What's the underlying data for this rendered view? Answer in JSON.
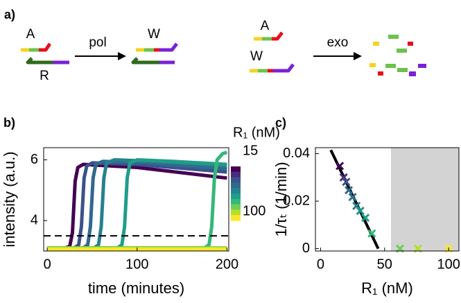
{
  "diagram": {
    "panel_label": "a)",
    "left": {
      "strand_top": "A",
      "strand_bottom": "R",
      "arrow": "pol",
      "product": "W"
    },
    "right": {
      "strand_top": "A",
      "strand_bottom": "W",
      "arrow": "exo"
    }
  },
  "chart_data": [
    {
      "type": "line",
      "panel_label": "b)",
      "x_label": "time (minutes)",
      "y_label": "intensity (a.u.)",
      "xlim": [
        -4,
        202
      ],
      "xticks": [
        0,
        100,
        200
      ],
      "ylim": [
        3,
        6.4
      ],
      "yticks": [
        4,
        6
      ],
      "threshold": 3.5,
      "series": [
        {
          "color": "#440154",
          "x": [
            0,
            20,
            25,
            28,
            31,
            34,
            40,
            100,
            200
          ],
          "values": [
            3.1,
            3.1,
            3.15,
            3.6,
            5.3,
            5.75,
            5.85,
            5.75,
            5.4
          ]
        },
        {
          "color": "#3b528b",
          "x": [
            0,
            30,
            35,
            38,
            41,
            44,
            50,
            100,
            200
          ],
          "values": [
            3.1,
            3.1,
            3.2,
            3.8,
            5.4,
            5.8,
            5.9,
            5.85,
            5.6
          ]
        },
        {
          "color": "#31688e",
          "x": [
            0,
            40,
            45,
            48,
            51,
            54,
            62,
            110,
            200
          ],
          "values": [
            3.1,
            3.1,
            3.2,
            3.8,
            5.4,
            5.85,
            5.95,
            5.9,
            5.7
          ]
        },
        {
          "color": "#26828e",
          "x": [
            0,
            52,
            57,
            60,
            63,
            66,
            75,
            120,
            200
          ],
          "values": [
            3.1,
            3.1,
            3.2,
            3.8,
            5.4,
            5.9,
            6.0,
            5.95,
            5.8
          ]
        },
        {
          "color": "#1f9e89",
          "x": [
            0,
            78,
            83,
            86,
            89,
            92,
            100,
            140,
            200
          ],
          "values": [
            3.1,
            3.1,
            3.2,
            3.8,
            5.4,
            5.9,
            6.0,
            5.95,
            5.85
          ]
        },
        {
          "color": "#35b779",
          "x": [
            0,
            175,
            180,
            183,
            186,
            189,
            195,
            200
          ],
          "values": [
            3.1,
            3.1,
            3.2,
            3.8,
            5.4,
            6.0,
            6.2,
            6.25
          ]
        },
        {
          "color": "#6ece58",
          "x": [
            0,
            200
          ],
          "values": [
            3.1,
            3.1
          ]
        },
        {
          "color": "#b5de2b",
          "x": [
            0,
            200
          ],
          "values": [
            3.08,
            3.08
          ]
        },
        {
          "color": "#fde725",
          "x": [
            0,
            200
          ],
          "values": [
            3.05,
            3.05
          ]
        }
      ],
      "colorbar": {
        "title": "R₁ (nM)",
        "ticks": [
          15,
          100
        ],
        "colors": [
          "#440154",
          "#472d7b",
          "#3b528b",
          "#31688e",
          "#26828e",
          "#1f9e89",
          "#35b779",
          "#6ece58",
          "#b5de2b",
          "#fde725"
        ]
      }
    },
    {
      "type": "scatter",
      "panel_label": "c)",
      "x_label": "R₁ (nM)",
      "y_label": "1/τₜ (1/min)",
      "xlim": [
        -4,
        108
      ],
      "xticks": [
        0,
        50,
        100
      ],
      "ylim": [
        -0.001,
        0.0425
      ],
      "yticks": [
        0,
        0.02,
        0.04
      ],
      "shaded_xrange": [
        55,
        108
      ],
      "shade_color": "#d3d3d3",
      "fit": {
        "color": "#000000",
        "x": [
          8,
          45
        ],
        "values": [
          0.0415,
          0
        ]
      },
      "series": [
        {
          "x": [
            15,
            18,
            20,
            22,
            25,
            28,
            31,
            35,
            40,
            62,
            76,
            100
          ],
          "values": [
            0.0348,
            0.03,
            0.0281,
            0.0246,
            0.0217,
            0.018,
            0.0159,
            0.013,
            0.0064,
            0,
            0,
            0
          ],
          "colors": [
            "#440154",
            "#472d7b",
            "#3b528b",
            "#31688e",
            "#2c728e",
            "#26828e",
            "#21918c",
            "#1f9e89",
            "#35b779",
            "#6ece58",
            "#b5de2b",
            "#fde725"
          ]
        }
      ]
    }
  ]
}
